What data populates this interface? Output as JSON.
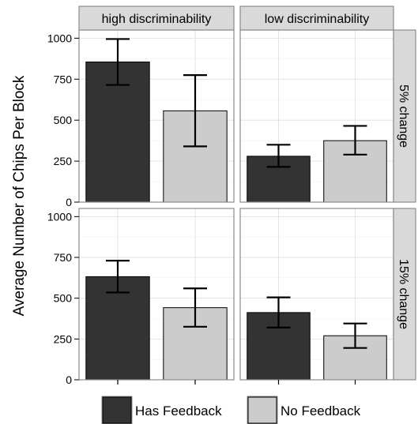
{
  "chart_data": {
    "type": "bar",
    "ylabel": "Average Number of Chips Per Block",
    "xlabel": "",
    "ylim": [
      0,
      1050
    ],
    "y_ticks": [
      0,
      250,
      500,
      750,
      1000
    ],
    "y_tick_labels": [
      "0",
      "250",
      "500",
      "750",
      "1000"
    ],
    "grid": true,
    "legend_position": "bottom",
    "column_facets": [
      "high discriminability",
      "low discriminability"
    ],
    "row_facets": [
      "5% change",
      "15% change"
    ],
    "series": [
      {
        "name": "Has Feedback",
        "color": "#333333"
      },
      {
        "name": "No Feedback",
        "color": "#cccccc"
      }
    ],
    "panels": [
      {
        "column": "high discriminability",
        "row": "5% change",
        "bars": [
          {
            "series": "Has Feedback",
            "value": 855,
            "error_low": 715,
            "error_high": 995
          },
          {
            "series": "No Feedback",
            "value": 557,
            "error_low": 340,
            "error_high": 775
          }
        ]
      },
      {
        "column": "low discriminability",
        "row": "5% change",
        "bars": [
          {
            "series": "Has Feedback",
            "value": 280,
            "error_low": 215,
            "error_high": 350
          },
          {
            "series": "No Feedback",
            "value": 375,
            "error_low": 290,
            "error_high": 465
          }
        ]
      },
      {
        "column": "high discriminability",
        "row": "15% change",
        "bars": [
          {
            "series": "Has Feedback",
            "value": 632,
            "error_low": 535,
            "error_high": 730
          },
          {
            "series": "No Feedback",
            "value": 442,
            "error_low": 325,
            "error_high": 560
          }
        ]
      },
      {
        "column": "low discriminability",
        "row": "15% change",
        "bars": [
          {
            "series": "Has Feedback",
            "value": 412,
            "error_low": 320,
            "error_high": 505
          },
          {
            "series": "No Feedback",
            "value": 270,
            "error_low": 195,
            "error_high": 345
          }
        ]
      }
    ]
  }
}
